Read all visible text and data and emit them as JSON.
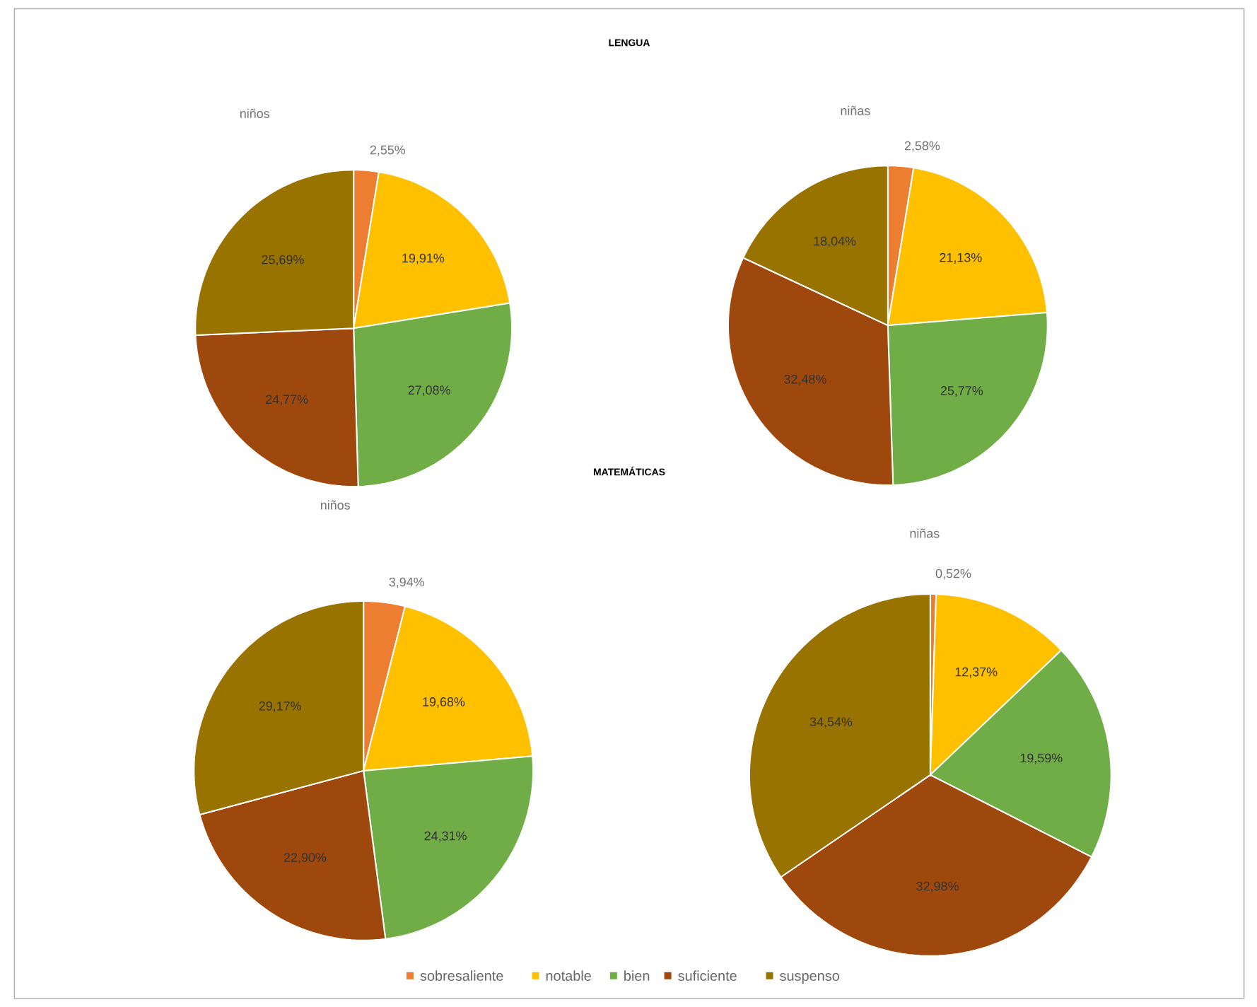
{
  "chart_data": [
    {
      "type": "pie",
      "title": "LENGUA",
      "subtitle": "niños",
      "categories": [
        null,
        null,
        null,
        null,
        null
      ],
      "values": [
        2.55,
        19.91,
        27.08,
        24.77,
        25.69
      ],
      "value_labels": [
        "2,55%",
        "19,91%",
        "27,08%",
        "24,77%",
        "25,69%"
      ],
      "colors": [
        "#ed7d31",
        "#ffc000",
        "#70ad47",
        "#9e480e",
        "#997300"
      ]
    },
    {
      "type": "pie",
      "subtitle": "niñas",
      "categories": [
        null,
        null,
        null,
        null,
        null
      ],
      "values": [
        2.58,
        21.13,
        25.77,
        32.48,
        18.04
      ],
      "value_labels": [
        "2,58%",
        "21,13%",
        "25,77%",
        "32,48%",
        "18,04%"
      ],
      "colors": [
        "#ed7d31",
        "#ffc000",
        "#70ad47",
        "#9e480e",
        "#997300"
      ]
    },
    {
      "type": "pie",
      "title": "MATEMÁTICAS",
      "subtitle": "niños",
      "categories": [
        null,
        null,
        null,
        null,
        null
      ],
      "values": [
        3.94,
        19.68,
        24.31,
        22.9,
        29.17
      ],
      "value_labels": [
        "3,94%",
        "19,68%",
        "24,31%",
        "22,90%",
        "29,17%"
      ],
      "colors": [
        "#ed7d31",
        "#ffc000",
        "#70ad47",
        "#9e480e",
        "#997300"
      ]
    },
    {
      "type": "pie",
      "subtitle": "niñas",
      "categories": [
        "sobresaliente",
        "notable",
        "bien",
        "suficiente",
        "suspenso"
      ],
      "values": [
        0.52,
        12.37,
        19.59,
        32.98,
        34.54
      ],
      "value_labels": [
        "0,52%",
        "12,37%",
        "19,59%",
        "32,98%",
        "34,54%"
      ],
      "colors": [
        "#ed7d31",
        "#ffc000",
        "#70ad47",
        "#9e480e",
        "#997300"
      ],
      "legend": "bottom"
    }
  ]
}
